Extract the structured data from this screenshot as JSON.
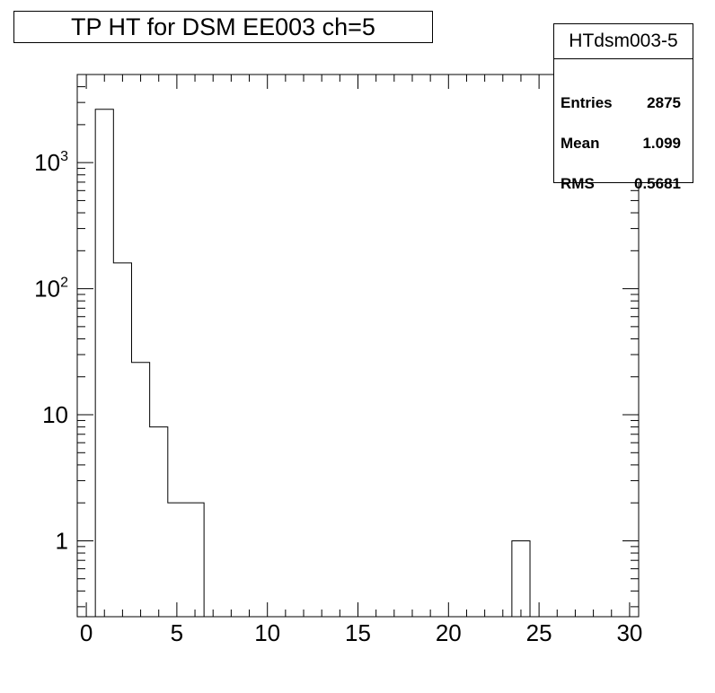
{
  "title": "TP HT for DSM EE003 ch=5",
  "stats": {
    "name": "HTdsm003-5",
    "rows": [
      {
        "label": "Entries",
        "value": "2875"
      },
      {
        "label": "Mean",
        "value": "1.099"
      },
      {
        "label": "RMS",
        "value": "0.5681"
      }
    ]
  },
  "chart_data": {
    "type": "bar",
    "title": "TP HT for DSM EE003 ch=5",
    "xlabel": "",
    "ylabel": "",
    "xlim": [
      -0.5,
      30.5
    ],
    "ylim": [
      0.25,
      5000
    ],
    "log_y": true,
    "grid": false,
    "bin_width": 1,
    "x_ticks": [
      0,
      5,
      10,
      15,
      20,
      25,
      30
    ],
    "y_ticks": [
      {
        "value": 1,
        "base": "1",
        "exp": ""
      },
      {
        "value": 10,
        "base": "10",
        "exp": ""
      },
      {
        "value": 100,
        "base": "10",
        "exp": "2"
      },
      {
        "value": 1000,
        "base": "10",
        "exp": "3"
      }
    ],
    "bins": [
      {
        "x": 1,
        "count": 2650
      },
      {
        "x": 2,
        "count": 160
      },
      {
        "x": 3,
        "count": 26
      },
      {
        "x": 4,
        "count": 8
      },
      {
        "x": 5,
        "count": 2
      },
      {
        "x": 6,
        "count": 2
      },
      {
        "x": 24,
        "count": 1
      }
    ]
  }
}
